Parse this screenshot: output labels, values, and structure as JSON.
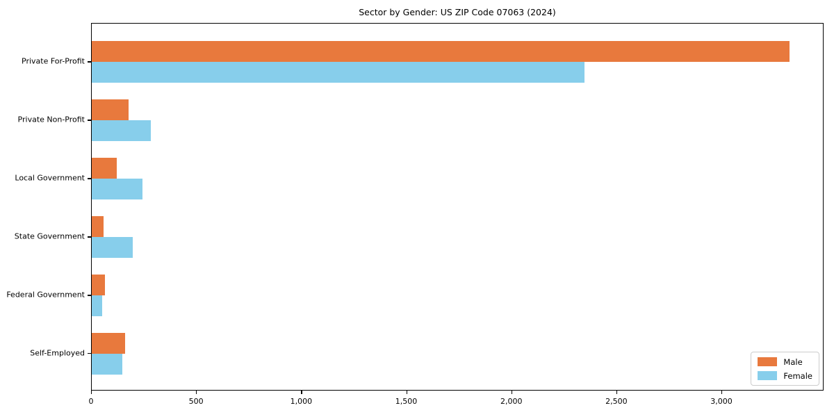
{
  "title": "Sector by Gender: US ZIP Code 07063 (2024)",
  "colors": {
    "male": "#E8793D",
    "female": "#87CEEB",
    "axis": "#000000",
    "legend_border": "#cccccc",
    "background": "#ffffff"
  },
  "chart_data": {
    "type": "bar",
    "orientation": "horizontal",
    "title": "Sector by Gender: US ZIP Code 07063 (2024)",
    "xlabel": "",
    "ylabel": "",
    "categories": [
      "Private For-Profit",
      "Private Non-Profit",
      "Local Government",
      "State Government",
      "Federal Government",
      "Self-Employed"
    ],
    "series": [
      {
        "name": "Male",
        "color": "#E8793D",
        "values": [
          3320,
          175,
          120,
          57,
          63,
          160
        ]
      },
      {
        "name": "Female",
        "color": "#87CEEB",
        "values": [
          2345,
          280,
          240,
          195,
          50,
          147
        ]
      }
    ],
    "xlim": [
      0,
      3486
    ],
    "x_ticks": [
      0,
      500,
      1000,
      1500,
      2000,
      2500,
      3000
    ],
    "x_tick_labels": [
      "0",
      "500",
      "1,000",
      "1,500",
      "2,000",
      "2,500",
      "3,000"
    ],
    "grid": false,
    "legend_position": "lower right"
  },
  "legend": {
    "items": [
      {
        "label": "Male"
      },
      {
        "label": "Female"
      }
    ]
  }
}
